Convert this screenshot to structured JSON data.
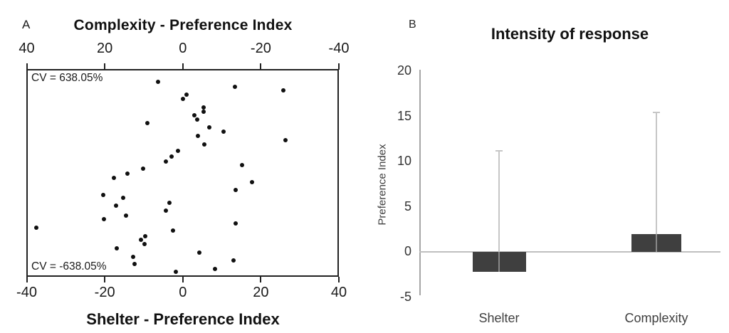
{
  "panel_a": {
    "label": "A",
    "title": "Complexity - Preference Index",
    "cv_top": "CV = 638.05%",
    "cv_bottom": "CV = -638.05%",
    "xlabel_bottom": "Shelter - Preference Index"
  },
  "panel_b": {
    "label": "B",
    "title": "Intensity of response",
    "ylabel": "Preference Index"
  },
  "chart_data": [
    {
      "type": "scatter",
      "panel": "A",
      "title": "Complexity - Preference Index",
      "axis_top": {
        "label": "Complexity - Preference Index",
        "ticks": [
          40,
          20,
          0,
          -20,
          -40
        ],
        "note": "reversed, left to right"
      },
      "axis_bottom": {
        "label": "Shelter - Preference Index",
        "ticks": [
          -40,
          -20,
          0,
          20,
          40
        ],
        "range": [
          -40,
          40
        ]
      },
      "y_axis_note": "no labeled vertical axis; each point given as [shelter_x_value, vertical_percent_from_top]",
      "annotations": [
        {
          "text": "CV = 638.05%",
          "position": "top-left"
        },
        {
          "text": "CV = -638.05%",
          "position": "bottom-left"
        }
      ],
      "marker_color": "#101010",
      "points": [
        [
          -6.4,
          6.0
        ],
        [
          13.4,
          8.4
        ],
        [
          25.8,
          10.1
        ],
        [
          1.0,
          12.2
        ],
        [
          0.1,
          14.2
        ],
        [
          5.4,
          18.4
        ],
        [
          5.4,
          20.4
        ],
        [
          2.9,
          22.1
        ],
        [
          3.6,
          24.2
        ],
        [
          -9.0,
          25.9
        ],
        [
          6.7,
          28.0
        ],
        [
          10.5,
          30.0
        ],
        [
          3.8,
          32.1
        ],
        [
          26.3,
          34.1
        ],
        [
          5.6,
          36.2
        ],
        [
          -1.3,
          39.3
        ],
        [
          -2.8,
          42.0
        ],
        [
          -4.4,
          44.4
        ],
        [
          15.2,
          46.1
        ],
        [
          -10.1,
          47.9
        ],
        [
          -14.2,
          50.3
        ],
        [
          -17.7,
          52.3
        ],
        [
          17.8,
          54.4
        ],
        [
          13.6,
          58.1
        ],
        [
          -20.4,
          60.5
        ],
        [
          -15.2,
          61.9
        ],
        [
          -3.5,
          64.3
        ],
        [
          -17.2,
          65.7
        ],
        [
          -4.4,
          68.1
        ],
        [
          -14.6,
          70.5
        ],
        [
          -20.2,
          72.2
        ],
        [
          13.6,
          74.3
        ],
        [
          -37.5,
          76.3
        ],
        [
          -2.6,
          77.7
        ],
        [
          -9.7,
          80.4
        ],
        [
          -10.8,
          82.2
        ],
        [
          -9.9,
          84.2
        ],
        [
          -17.0,
          86.3
        ],
        [
          4.3,
          88.3
        ],
        [
          -12.8,
          90.4
        ],
        [
          12.9,
          92.1
        ],
        [
          -12.3,
          93.8
        ],
        [
          8.3,
          96.2
        ],
        [
          -1.7,
          97.6
        ]
      ]
    },
    {
      "type": "bar",
      "panel": "B",
      "title": "Intensity of response",
      "ylabel": "Preference Index",
      "categories": [
        "Shelter",
        "Complexity"
      ],
      "values": [
        -2.2,
        2.0
      ],
      "error_upper": [
        11.2,
        15.4
      ],
      "ylim": [
        -5,
        20
      ],
      "yticks": [
        20,
        15,
        10,
        5,
        0,
        -5
      ],
      "bar_color": "#3f3f3f",
      "error_color": "#c6c6c6",
      "axis_color": "#a6a6a6",
      "zero_line_color": "#bfbfbf",
      "legend": "none",
      "grid": "off"
    }
  ]
}
